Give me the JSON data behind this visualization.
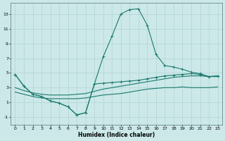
{
  "xlabel": "Humidex (Indice chaleur)",
  "background_color": "#cce8e8",
  "grid_color": "#aacfcf",
  "line_color": "#1a7a6e",
  "xlim": [
    -0.5,
    23.5
  ],
  "ylim": [
    -2,
    14.5
  ],
  "xticks": [
    0,
    1,
    2,
    3,
    4,
    5,
    6,
    7,
    8,
    9,
    10,
    11,
    12,
    13,
    14,
    15,
    16,
    17,
    18,
    19,
    20,
    21,
    22,
    23
  ],
  "yticks": [
    -1,
    1,
    3,
    5,
    7,
    9,
    11,
    13
  ],
  "series_spike": {
    "x": [
      0,
      1,
      2,
      3,
      4,
      5,
      6,
      7,
      8,
      9,
      10,
      11,
      12,
      13,
      14,
      15,
      16,
      17,
      18,
      19,
      20,
      21,
      22,
      23
    ],
    "y": [
      4.8,
      3.2,
      2.1,
      1.8,
      1.2,
      0.9,
      0.4,
      -0.7,
      -0.4,
      3.5,
      7.2,
      10.0,
      13.0,
      13.6,
      13.7,
      11.5,
      7.5,
      6.0,
      5.8,
      5.5,
      5.1,
      4.9,
      4.5,
      4.6
    ]
  },
  "series_v": {
    "x": [
      0,
      1,
      2,
      3,
      4,
      5,
      6,
      7,
      8,
      9,
      10,
      11,
      12,
      13,
      14,
      15,
      16,
      17,
      18,
      19,
      20,
      21,
      22,
      23
    ],
    "y": [
      4.8,
      3.2,
      2.1,
      1.8,
      1.2,
      0.9,
      0.4,
      -0.7,
      -0.4,
      3.5,
      3.6,
      3.7,
      3.8,
      3.9,
      4.0,
      4.2,
      4.4,
      4.6,
      4.7,
      4.8,
      4.9,
      4.8,
      4.5,
      4.6
    ]
  },
  "series_upper_flat": {
    "x": [
      0,
      1,
      2,
      3,
      4,
      5,
      6,
      7,
      8,
      9,
      10,
      11,
      12,
      13,
      14,
      15,
      16,
      17,
      18,
      19,
      20,
      21,
      22,
      23
    ],
    "y": [
      3.0,
      2.6,
      2.3,
      2.1,
      2.0,
      2.0,
      2.0,
      2.1,
      2.2,
      2.5,
      2.8,
      3.0,
      3.2,
      3.4,
      3.6,
      3.8,
      4.0,
      4.2,
      4.4,
      4.5,
      4.6,
      4.6,
      4.5,
      4.5
    ]
  },
  "series_lower_flat": {
    "x": [
      0,
      1,
      2,
      3,
      4,
      5,
      6,
      7,
      8,
      9,
      10,
      11,
      12,
      13,
      14,
      15,
      16,
      17,
      18,
      19,
      20,
      21,
      22,
      23
    ],
    "y": [
      2.4,
      2.1,
      1.8,
      1.6,
      1.5,
      1.5,
      1.5,
      1.5,
      1.6,
      1.8,
      2.0,
      2.1,
      2.2,
      2.4,
      2.6,
      2.8,
      2.9,
      3.0,
      3.0,
      3.1,
      3.0,
      3.0,
      3.0,
      3.1
    ]
  }
}
